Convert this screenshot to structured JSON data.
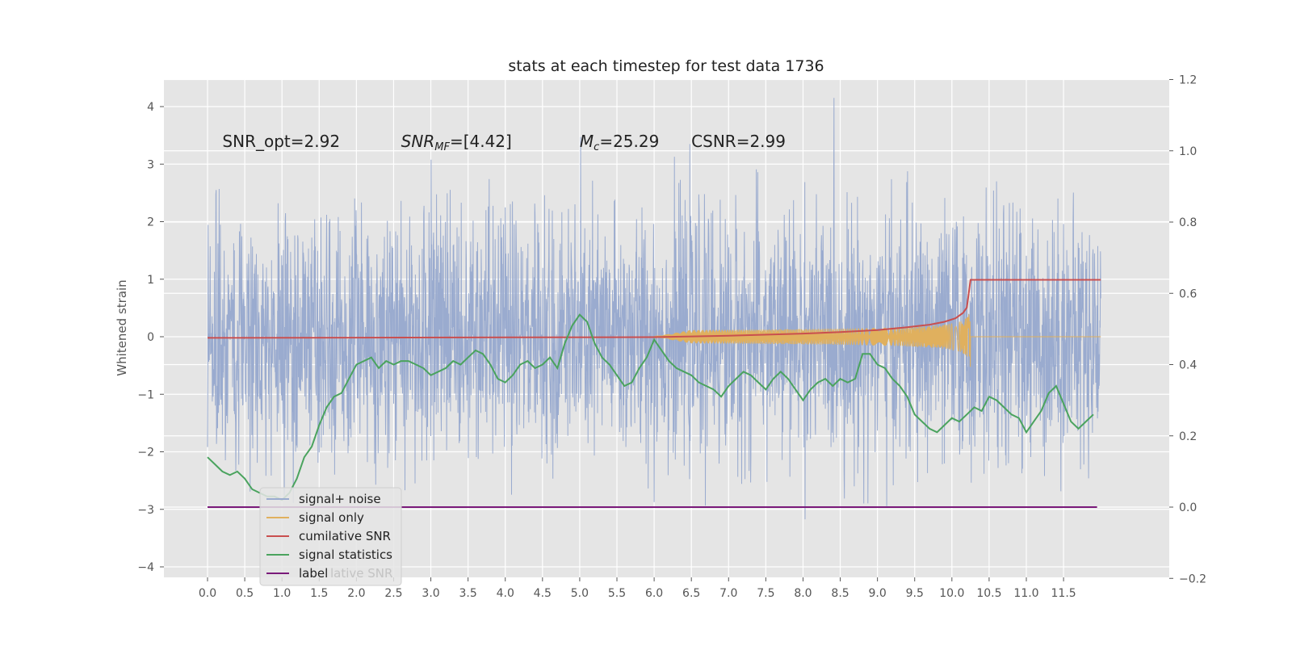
{
  "chart_data": {
    "type": "line",
    "title": "stats at each timestep for test data 1736",
    "ylabel": "Whitened strain",
    "ylabel_right": "",
    "xlim": [
      -0.58,
      12.6
    ],
    "ylim": [
      -4.17,
      4.5
    ],
    "ylim_right": [
      -0.2,
      1.2
    ],
    "grid": true,
    "x_ticks": [
      0.0,
      0.5,
      1.0,
      1.5,
      2.0,
      2.5,
      3.0,
      3.5,
      4.0,
      4.5,
      5.0,
      5.5,
      6.0,
      6.5,
      7.0,
      7.5,
      8.0,
      8.5,
      9.0,
      9.5,
      10.0,
      10.5,
      11.0,
      11.5
    ],
    "x_tick_labels": [
      "0.0",
      "0.5",
      "1.0",
      "1.5",
      "2.0",
      "2.5",
      "3.0",
      "3.5",
      "4.0",
      "4.5",
      "5.0",
      "5.5",
      "6.0",
      "6.5",
      "7.0",
      "7.5",
      "8.0",
      "8.5",
      "9.0",
      "9.5",
      "10.0",
      "10.5",
      "11.0",
      "11.5"
    ],
    "y_ticks": [
      -4,
      -3,
      -2,
      -1,
      0,
      1,
      2,
      3,
      4
    ],
    "y_tick_labels": [
      "−4",
      "−3",
      "−2",
      "−1",
      "0",
      "1",
      "2",
      "3",
      "4"
    ],
    "y_ticks_right": [
      -0.2,
      0.0,
      0.2,
      0.4,
      0.6,
      0.8,
      1.0,
      1.2
    ],
    "y_tick_labels_right": [
      "−0.2",
      "0.0",
      "0.2",
      "0.4",
      "0.6",
      "0.8",
      "1.0",
      "1.2"
    ],
    "annotations": [
      {
        "text": "SNR_opt=2.92",
        "x": 0.2
      },
      {
        "text_main": "SNR",
        "text_sub": "MF",
        "text_rest": "=[4.42]",
        "x": 2.6
      },
      {
        "text_main": "M",
        "text_sub": "c",
        "text_rest": "=25.29",
        "x": 5.0
      },
      {
        "text": "CSNR=2.99",
        "x": 6.5
      }
    ],
    "annotation_y": 3.3,
    "legend": {
      "placement": "lower-left",
      "entries": [
        "signal+ noise",
        "signal only",
        "cumilative SNR",
        "signal statistics",
        "label"
      ],
      "hidden_text": "lative SNR"
    },
    "colors": {
      "background": "#e5e5e5",
      "grid": "#ffffff",
      "signal_noise": "#9aabcf",
      "signal_only": "#e0b05e",
      "cumulative_snr": "#c94f4f",
      "signal_statistics": "#4aa35e",
      "label": "#7a1a7a",
      "text": "#555555"
    },
    "series": [
      {
        "name": "signal+ noise",
        "axis": "left",
        "kind": "noise",
        "x_range": [
          0.0,
          12.0
        ],
        "approx_sigma": 1.05,
        "approx_extremes": [
          4.1,
          -3.8
        ],
        "values": []
      },
      {
        "name": "signal only",
        "axis": "left",
        "kind": "chirp",
        "x_range": [
          6.0,
          10.25
        ],
        "peak_x": 10.25,
        "peak_amplitude": 0.65,
        "values": []
      },
      {
        "name": "cumilative SNR",
        "axis": "right",
        "x": [
          0.0,
          6.0,
          7.0,
          8.0,
          8.5,
          9.0,
          9.4,
          9.7,
          9.9,
          10.05,
          10.15,
          10.2,
          10.25,
          12.0
        ],
        "values": [
          0.475,
          0.477,
          0.481,
          0.487,
          0.491,
          0.497,
          0.505,
          0.512,
          0.52,
          0.53,
          0.545,
          0.56,
          0.638,
          0.638
        ]
      },
      {
        "name": "signal statistics",
        "axis": "right",
        "x": [
          0.0,
          0.1,
          0.2,
          0.3,
          0.4,
          0.5,
          0.6,
          0.7,
          0.8,
          0.9,
          1.0,
          1.1,
          1.2,
          1.3,
          1.4,
          1.5,
          1.6,
          1.7,
          1.8,
          1.9,
          2.0,
          2.1,
          2.2,
          2.3,
          2.4,
          2.5,
          2.6,
          2.7,
          2.8,
          2.9,
          3.0,
          3.1,
          3.2,
          3.3,
          3.4,
          3.5,
          3.6,
          3.7,
          3.8,
          3.9,
          4.0,
          4.1,
          4.2,
          4.3,
          4.4,
          4.5,
          4.6,
          4.7,
          4.8,
          4.9,
          5.0,
          5.1,
          5.2,
          5.3,
          5.4,
          5.5,
          5.6,
          5.7,
          5.8,
          5.9,
          6.0,
          6.1,
          6.2,
          6.3,
          6.4,
          6.5,
          6.6,
          6.7,
          6.8,
          6.9,
          7.0,
          7.1,
          7.2,
          7.3,
          7.4,
          7.5,
          7.6,
          7.7,
          7.8,
          7.9,
          8.0,
          8.1,
          8.2,
          8.3,
          8.4,
          8.5,
          8.6,
          8.7,
          8.8,
          8.9,
          9.0,
          9.1,
          9.2,
          9.3,
          9.4,
          9.5,
          9.6,
          9.7,
          9.8,
          9.9,
          10.0,
          10.1,
          10.2,
          10.3,
          10.4,
          10.5,
          10.6,
          10.7,
          10.8,
          10.9,
          11.0,
          11.1,
          11.2,
          11.3,
          11.4,
          11.5,
          11.6,
          11.7,
          11.8,
          11.9
        ],
        "values": [
          0.14,
          0.12,
          0.1,
          0.09,
          0.1,
          0.08,
          0.05,
          0.04,
          0.03,
          0.03,
          0.02,
          0.04,
          0.08,
          0.14,
          0.17,
          0.23,
          0.28,
          0.31,
          0.32,
          0.36,
          0.4,
          0.41,
          0.42,
          0.39,
          0.41,
          0.4,
          0.41,
          0.41,
          0.4,
          0.39,
          0.37,
          0.38,
          0.39,
          0.41,
          0.4,
          0.42,
          0.44,
          0.43,
          0.4,
          0.36,
          0.35,
          0.37,
          0.4,
          0.41,
          0.39,
          0.4,
          0.42,
          0.39,
          0.46,
          0.51,
          0.54,
          0.52,
          0.46,
          0.42,
          0.4,
          0.37,
          0.34,
          0.35,
          0.39,
          0.42,
          0.47,
          0.44,
          0.41,
          0.39,
          0.38,
          0.37,
          0.35,
          0.34,
          0.33,
          0.31,
          0.34,
          0.36,
          0.38,
          0.37,
          0.35,
          0.33,
          0.36,
          0.38,
          0.36,
          0.33,
          0.3,
          0.33,
          0.35,
          0.36,
          0.34,
          0.36,
          0.35,
          0.36,
          0.43,
          0.43,
          0.4,
          0.39,
          0.36,
          0.34,
          0.31,
          0.26,
          0.24,
          0.22,
          0.21,
          0.23,
          0.25,
          0.24,
          0.26,
          0.28,
          0.27,
          0.31,
          0.3,
          0.28,
          0.26,
          0.25,
          0.21,
          0.24,
          0.27,
          0.32,
          0.34,
          0.29,
          0.24,
          0.22,
          0.24,
          0.26
        ]
      },
      {
        "name": "label",
        "axis": "right",
        "x": [
          0.0,
          11.95
        ],
        "values": [
          0.0,
          0.0
        ]
      }
    ]
  }
}
